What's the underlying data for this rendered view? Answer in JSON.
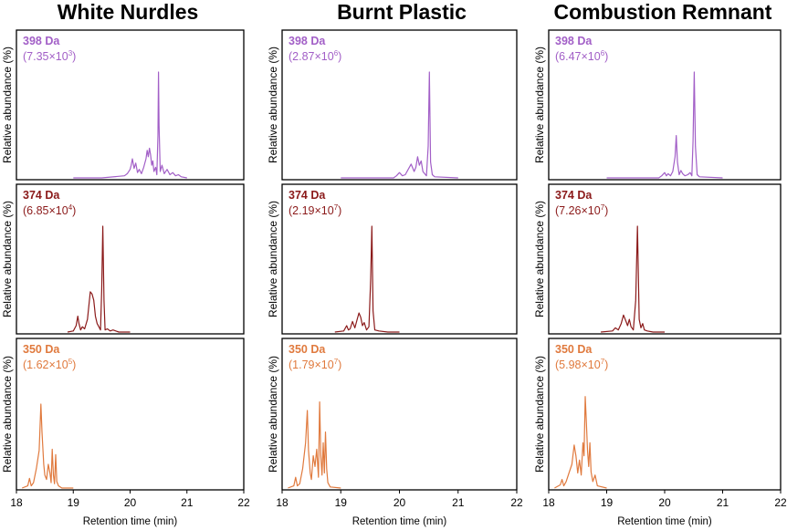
{
  "chart_data": [
    {
      "type": "line",
      "title": "White Nurdles",
      "xlabel": "Retention time (min)",
      "ylabel": "Relative abundance (%)",
      "xlim": [
        18,
        22
      ],
      "xticks": [
        "18",
        "19",
        "20",
        "21",
        "22"
      ],
      "panels": [
        {
          "mass_label": "398 Da",
          "abundance_base": "(7.35×10",
          "abundance_exp": "3",
          "abundance_close": ")",
          "color": "#a25fc7",
          "x": [
            19.0,
            19.5,
            19.9,
            19.95,
            20.0,
            20.02,
            20.04,
            20.07,
            20.1,
            20.13,
            20.16,
            20.2,
            20.24,
            20.28,
            20.3,
            20.32,
            20.34,
            20.36,
            20.38,
            20.4,
            20.42,
            20.45,
            20.47,
            20.49,
            20.5,
            20.51,
            20.53,
            20.56,
            20.6,
            20.65,
            20.7,
            20.75,
            20.8,
            20.85,
            20.9,
            21.0
          ],
          "y": [
            0,
            0,
            0.02,
            0.04,
            0.08,
            0.12,
            0.18,
            0.09,
            0.14,
            0.05,
            0.08,
            0.04,
            0.1,
            0.18,
            0.26,
            0.2,
            0.28,
            0.22,
            0.12,
            0.16,
            0.06,
            0.1,
            0.03,
            0.4,
            1.0,
            0.5,
            0.06,
            0.12,
            0.04,
            0.08,
            0.03,
            0.05,
            0.02,
            0.03,
            0.01,
            0
          ]
        },
        {
          "mass_label": "374 Da",
          "abundance_base": "(6.85×10",
          "abundance_exp": "4",
          "abundance_close": ")",
          "color": "#8b1a1a",
          "x": [
            18.9,
            19.0,
            19.05,
            19.08,
            19.1,
            19.13,
            19.16,
            19.2,
            19.25,
            19.28,
            19.3,
            19.33,
            19.36,
            19.39,
            19.42,
            19.45,
            19.48,
            19.5,
            19.52,
            19.54,
            19.56,
            19.6,
            19.65,
            19.7,
            19.8,
            20.0
          ],
          "y": [
            0,
            0.01,
            0.06,
            0.15,
            0.08,
            0.02,
            0.05,
            0.03,
            0.12,
            0.28,
            0.38,
            0.36,
            0.3,
            0.15,
            0.08,
            0.05,
            0.02,
            0.4,
            1.0,
            0.3,
            0.02,
            0.03,
            0.01,
            0.02,
            0,
            0
          ]
        },
        {
          "mass_label": "350 Da",
          "abundance_base": "(1.62×10",
          "abundance_exp": "5",
          "abundance_close": ")",
          "color": "#e07a3e",
          "x": [
            18.1,
            18.2,
            18.23,
            18.26,
            18.3,
            18.35,
            18.4,
            18.43,
            18.45,
            18.48,
            18.5,
            18.53,
            18.56,
            18.59,
            18.61,
            18.63,
            18.65,
            18.67,
            18.69,
            18.71,
            18.74,
            18.8,
            19.0
          ],
          "y": [
            0,
            0.02,
            0.09,
            0.02,
            0.05,
            0.18,
            0.35,
            0.78,
            0.52,
            0.22,
            0.12,
            0.08,
            0.22,
            0.14,
            0.05,
            0.36,
            0.12,
            0.04,
            0.31,
            0.06,
            0.02,
            0,
            0
          ]
        }
      ]
    },
    {
      "type": "line",
      "title": "Burnt Plastic",
      "xlabel": "Retention time (min)",
      "ylabel": "Relative abundance (%)",
      "xlim": [
        18,
        22
      ],
      "xticks": [
        "18",
        "19",
        "20",
        "21",
        "22"
      ],
      "panels": [
        {
          "mass_label": "398 Da",
          "abundance_base": "(2.87×10",
          "abundance_exp": "6",
          "abundance_close": ")",
          "color": "#a25fc7",
          "x": [
            19.0,
            19.9,
            19.95,
            20.0,
            20.05,
            20.1,
            20.15,
            20.2,
            20.25,
            20.28,
            20.31,
            20.34,
            20.37,
            20.4,
            20.43,
            20.46,
            20.49,
            20.51,
            20.53,
            20.56,
            20.6,
            21.0
          ],
          "y": [
            0,
            0,
            0.02,
            0.05,
            0.02,
            0.03,
            0.08,
            0.13,
            0.06,
            0.1,
            0.2,
            0.12,
            0.16,
            0.06,
            0.04,
            0.02,
            0.3,
            1.0,
            0.15,
            0.03,
            0.01,
            0
          ]
        },
        {
          "mass_label": "374 Da",
          "abundance_base": "(2.19×10",
          "abundance_exp": "7",
          "abundance_close": ")",
          "color": "#8b1a1a",
          "x": [
            18.9,
            19.05,
            19.1,
            19.13,
            19.16,
            19.2,
            19.24,
            19.28,
            19.31,
            19.34,
            19.37,
            19.4,
            19.44,
            19.48,
            19.51,
            19.53,
            19.55,
            19.58,
            19.65,
            19.8,
            20.0
          ],
          "y": [
            0,
            0.01,
            0.06,
            0.02,
            0.03,
            0.1,
            0.04,
            0.12,
            0.18,
            0.14,
            0.06,
            0.09,
            0.02,
            0.05,
            0.5,
            1.0,
            0.2,
            0.02,
            0.01,
            0,
            0
          ]
        },
        {
          "mass_label": "350 Da",
          "abundance_base": "(1.79×10",
          "abundance_exp": "7",
          "abundance_close": ")",
          "color": "#e07a3e",
          "x": [
            18.1,
            18.2,
            18.23,
            18.26,
            18.3,
            18.35,
            18.4,
            18.43,
            18.45,
            18.48,
            18.5,
            18.53,
            18.56,
            18.59,
            18.62,
            18.64,
            18.66,
            18.68,
            18.7,
            18.72,
            18.74,
            18.76,
            18.78,
            18.82,
            19.0
          ],
          "y": [
            0,
            0.02,
            0.1,
            0.02,
            0.04,
            0.18,
            0.42,
            0.72,
            0.35,
            0.14,
            0.08,
            0.3,
            0.2,
            0.36,
            0.1,
            0.8,
            0.3,
            0.12,
            0.42,
            0.14,
            0.52,
            0.18,
            0.05,
            0.01,
            0
          ]
        }
      ]
    },
    {
      "type": "line",
      "title": "Combustion Remnant",
      "xlabel": "Retention time (min)",
      "ylabel": "Relative abundance (%)",
      "xlim": [
        18,
        22
      ],
      "xticks": [
        "18",
        "19",
        "20",
        "21",
        "22"
      ],
      "panels": [
        {
          "mass_label": "398 Da",
          "abundance_base": "(6.47×10",
          "abundance_exp": "6",
          "abundance_close": ")",
          "color": "#a25fc7",
          "x": [
            19.0,
            19.9,
            19.95,
            20.0,
            20.03,
            20.06,
            20.1,
            20.14,
            20.18,
            20.2,
            20.22,
            20.25,
            20.28,
            20.31,
            20.35,
            20.4,
            20.44,
            20.47,
            20.49,
            20.51,
            20.53,
            20.56,
            20.6,
            21.0
          ],
          "y": [
            0,
            0,
            0.02,
            0.05,
            0.02,
            0.04,
            0.02,
            0.06,
            0.2,
            0.4,
            0.15,
            0.03,
            0.07,
            0.04,
            0.02,
            0.03,
            0.05,
            0.02,
            0.35,
            1.0,
            0.3,
            0.03,
            0.01,
            0
          ]
        },
        {
          "mass_label": "374 Da",
          "abundance_base": "(7.26×10",
          "abundance_exp": "7",
          "abundance_close": ")",
          "color": "#8b1a1a",
          "x": [
            18.9,
            19.1,
            19.15,
            19.2,
            19.25,
            19.29,
            19.32,
            19.36,
            19.39,
            19.42,
            19.46,
            19.5,
            19.53,
            19.56,
            19.59,
            19.62,
            19.65,
            19.7,
            19.8,
            20.0
          ],
          "y": [
            0,
            0.01,
            0.04,
            0.02,
            0.08,
            0.16,
            0.12,
            0.06,
            0.12,
            0.05,
            0.02,
            0.3,
            1.0,
            0.12,
            0.04,
            0.08,
            0.02,
            0.01,
            0,
            0
          ]
        },
        {
          "mass_label": "350 Da",
          "abundance_base": "(5.98×10",
          "abundance_exp": "7",
          "abundance_close": ")",
          "color": "#e07a3e",
          "x": [
            18.1,
            18.2,
            18.23,
            18.26,
            18.3,
            18.35,
            18.4,
            18.44,
            18.47,
            18.5,
            18.53,
            18.56,
            18.59,
            18.61,
            18.63,
            18.65,
            18.67,
            18.69,
            18.71,
            18.73,
            18.76,
            18.8,
            18.84,
            19.0
          ],
          "y": [
            0,
            0.03,
            0.08,
            0.02,
            0.06,
            0.14,
            0.22,
            0.4,
            0.3,
            0.14,
            0.26,
            0.12,
            0.42,
            0.3,
            0.85,
            0.6,
            0.35,
            0.2,
            0.42,
            0.15,
            0.06,
            0.12,
            0.02,
            0
          ]
        }
      ]
    }
  ]
}
